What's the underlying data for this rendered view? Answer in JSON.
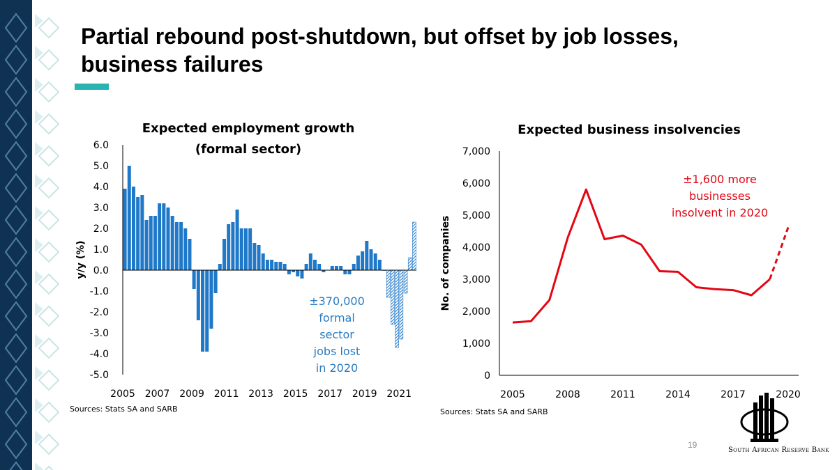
{
  "slide": {
    "title_line1": "Partial rebound post-shutdown, but offset by job losses,",
    "title_line2": "business failures",
    "page_number": "19",
    "accent_color": "#2bb3b1",
    "sidebar_color": "#0f3252",
    "bank_name": "South African Reserve Bank"
  },
  "chart_data": [
    {
      "type": "bar",
      "title": "Expected employment growth",
      "subtitle": "(formal sector)",
      "xlabel": "",
      "ylabel": "y/y (%)",
      "ylim": [
        -5.0,
        6.0
      ],
      "y_ticks": [
        "6.0",
        "5.0",
        "4.0",
        "3.0",
        "2.0",
        "1.0",
        "0.0",
        "-1.0",
        "-2.0",
        "-3.0",
        "-4.0",
        "-5.0"
      ],
      "x_ticks": [
        "2005",
        "2007",
        "2009",
        "2011",
        "2013",
        "2015",
        "2017",
        "2019",
        "2021"
      ],
      "bar_color": "#1f78c8",
      "series": [
        {
          "values": [
            3.9,
            5.0,
            4.0,
            3.5,
            3.6,
            2.4,
            2.6,
            2.6,
            3.2,
            3.2,
            3.0,
            2.6,
            2.3,
            2.3,
            2.0,
            1.5,
            -0.9,
            -2.4,
            -3.9,
            -3.9,
            -2.8,
            -1.1,
            0.3,
            1.5,
            2.2,
            2.3,
            2.9,
            2.0,
            2.0,
            2.0,
            1.3,
            1.2,
            0.8,
            0.5,
            0.5,
            0.4,
            0.4,
            0.3,
            -0.2,
            -0.1,
            -0.3,
            -0.4,
            0.3,
            0.8,
            0.5,
            0.3,
            -0.1,
            0.0,
            0.2,
            0.2,
            0.2,
            -0.2,
            -0.2,
            0.3,
            0.7,
            0.9,
            1.4,
            1.0,
            0.8,
            0.5,
            0.0,
            -1.3,
            -2.6,
            -3.7,
            -3.3,
            -1.1,
            0.6,
            2.3
          ],
          "forecast_from_index": 60
        }
      ],
      "annotation": {
        "lines": [
          "±370,000",
          "formal",
          "sector",
          "jobs lost",
          "in 2020"
        ],
        "color": "#2b7bbf"
      },
      "source": "Sources: Stats SA and SARB"
    },
    {
      "type": "line",
      "title": "Expected business insolvencies",
      "xlabel": "",
      "ylabel": "No. of companies",
      "ylim": [
        0,
        7000
      ],
      "xlim": [
        2005,
        2020
      ],
      "y_ticks": [
        "7,000",
        "6,000",
        "5,000",
        "4,000",
        "3,000",
        "2,000",
        "1,000",
        "0"
      ],
      "x_ticks": [
        "2005",
        "2008",
        "2011",
        "2014",
        "2017",
        "2020"
      ],
      "line_color": "#e30613",
      "series": [
        {
          "x": [
            2005,
            2006,
            2007,
            2008,
            2009,
            2010,
            2011,
            2012,
            2013,
            2014,
            2015,
            2016,
            2017,
            2018,
            2019,
            2020
          ],
          "values": [
            1650,
            1690,
            2350,
            4300,
            5800,
            4250,
            4360,
            4080,
            3250,
            3230,
            2750,
            2690,
            2660,
            2500,
            3000,
            4620
          ],
          "forecast_from_index": 14
        }
      ],
      "annotation": {
        "lines": [
          "±1,600 more",
          "businesses",
          "insolvent in 2020"
        ],
        "color": "#e30613"
      },
      "source": "Sources: Stats SA and SARB"
    }
  ]
}
